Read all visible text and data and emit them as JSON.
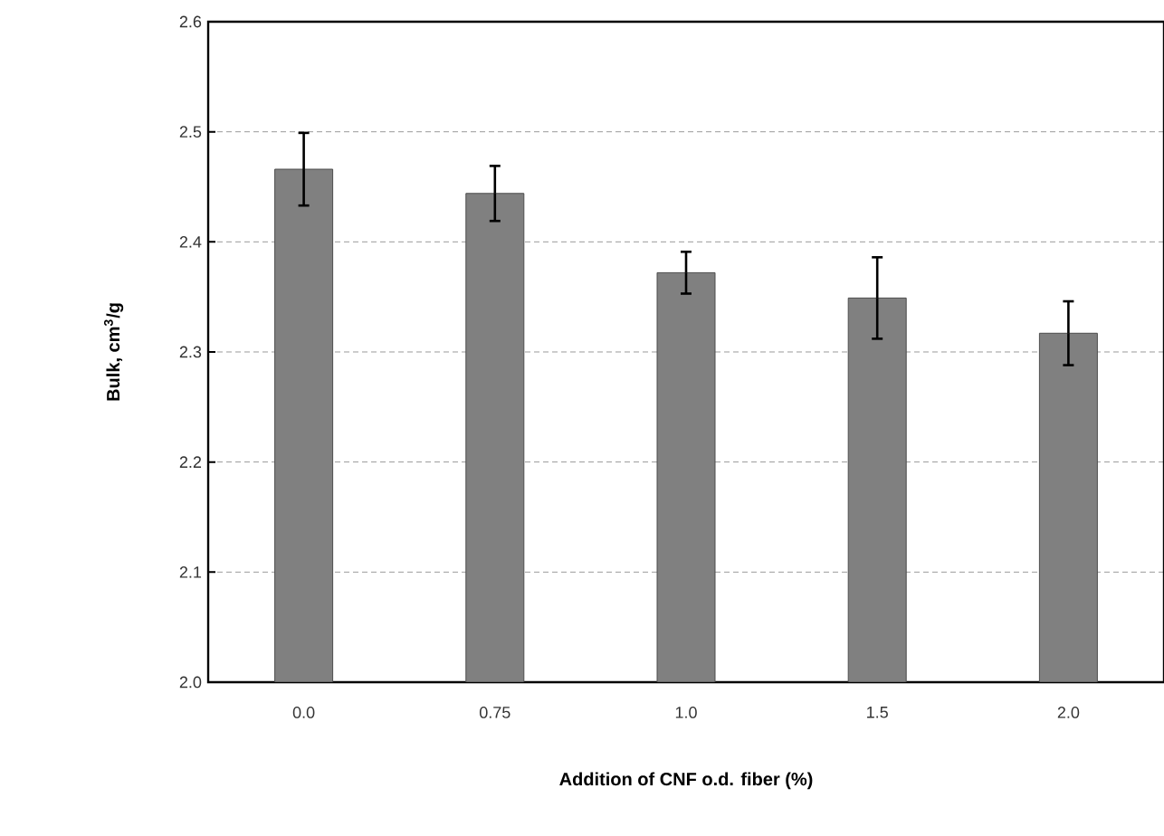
{
  "chart_data": {
    "type": "bar",
    "xlabel": "Addition of CNF o.d. fiber (%)",
    "ylabel": "Bulk, cm$^{3}$/g",
    "categories": [
      "0.0",
      "0.75",
      "1.0",
      "1.5",
      "2.0"
    ],
    "values": [
      2.466,
      2.444,
      2.372,
      2.349,
      2.317
    ],
    "errors": [
      0.033,
      0.025,
      0.019,
      0.037,
      0.029
    ],
    "color": "#808080",
    "ylim": [
      2.0,
      2.6
    ],
    "yticks": [
      {
        "value": 2.0,
        "label": "2.0"
      },
      {
        "value": 2.1,
        "label": "2.1"
      },
      {
        "value": 2.2,
        "label": "2.2"
      },
      {
        "value": 2.3,
        "label": "2.3"
      },
      {
        "value": 2.4,
        "label": "2.4"
      },
      {
        "value": 2.5,
        "label": "2.5"
      },
      {
        "value": 2.6,
        "label": "2.6"
      }
    ],
    "grid": "y"
  }
}
